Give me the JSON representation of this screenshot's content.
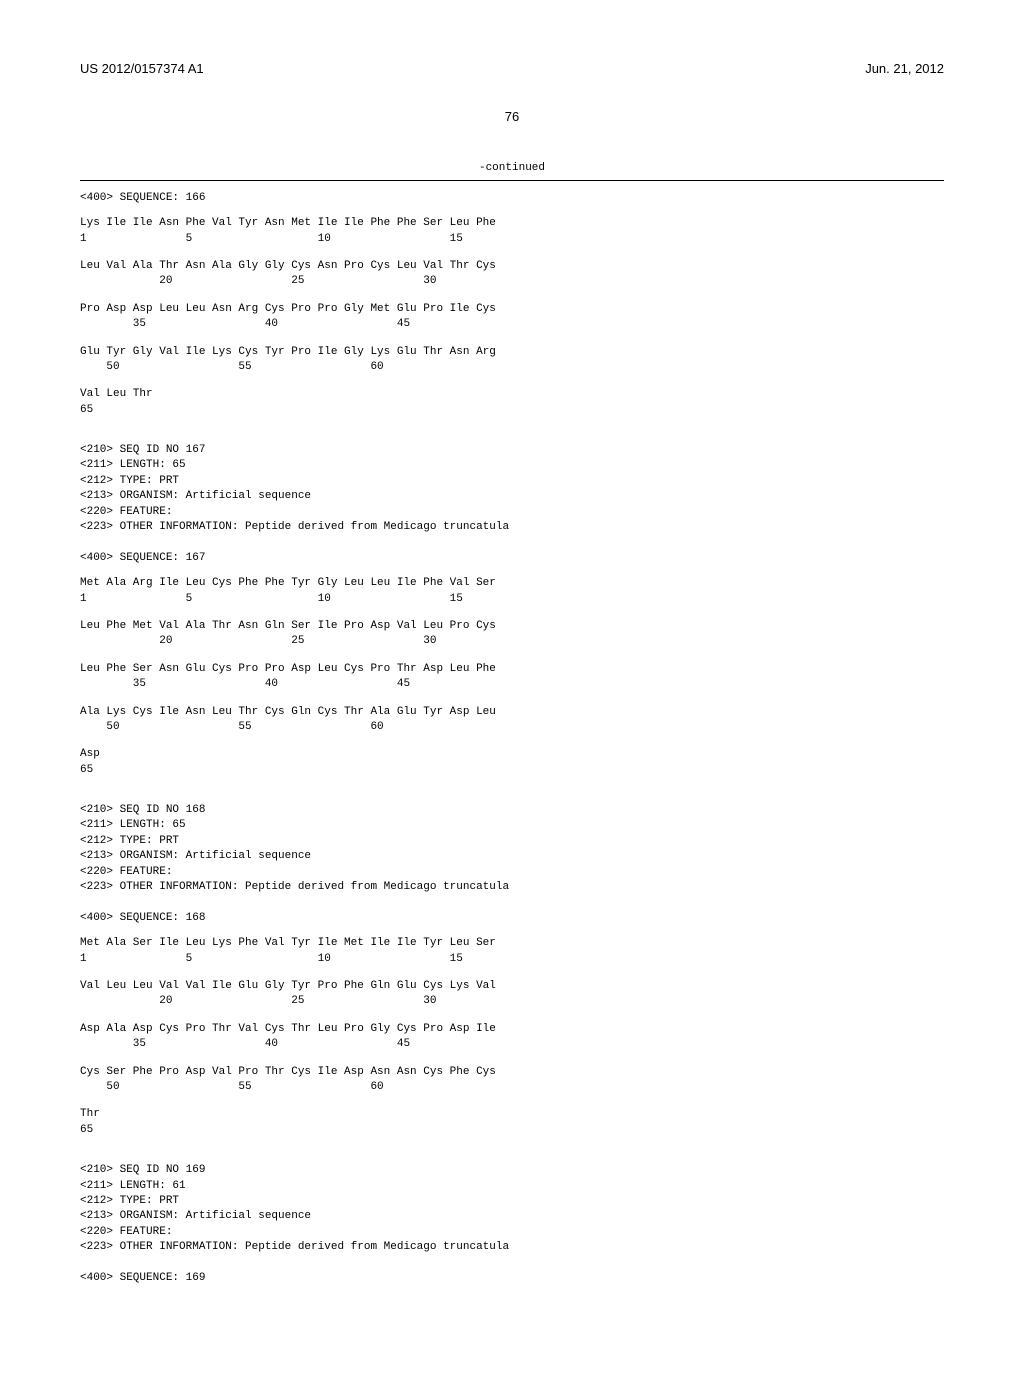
{
  "header": {
    "pub_number": "US 2012/0157374 A1",
    "pub_date": "Jun. 21, 2012"
  },
  "page_number": "76",
  "continued_label": "-continued",
  "sequences": [
    {
      "header": [
        "<400> SEQUENCE: 166"
      ],
      "rows": [
        {
          "seq": "Lys Ile Ile Asn Phe Val Tyr Asn Met Ile Ile Phe Phe Ser Leu Phe",
          "pos": "1               5                   10                  15"
        },
        {
          "seq": "Leu Val Ala Thr Asn Ala Gly Gly Cys Asn Pro Cys Leu Val Thr Cys",
          "pos": "            20                  25                  30"
        },
        {
          "seq": "Pro Asp Asp Leu Leu Asn Arg Cys Pro Pro Gly Met Glu Pro Ile Cys",
          "pos": "        35                  40                  45"
        },
        {
          "seq": "Glu Tyr Gly Val Ile Lys Cys Tyr Pro Ile Gly Lys Glu Thr Asn Arg",
          "pos": "    50                  55                  60"
        },
        {
          "seq": "Val Leu Thr",
          "pos": "65"
        }
      ]
    },
    {
      "header": [
        "<210> SEQ ID NO 167",
        "<211> LENGTH: 65",
        "<212> TYPE: PRT",
        "<213> ORGANISM: Artificial sequence",
        "<220> FEATURE:",
        "<223> OTHER INFORMATION: Peptide derived from Medicago truncatula",
        "",
        "<400> SEQUENCE: 167"
      ],
      "rows": [
        {
          "seq": "Met Ala Arg Ile Leu Cys Phe Phe Tyr Gly Leu Leu Ile Phe Val Ser",
          "pos": "1               5                   10                  15"
        },
        {
          "seq": "Leu Phe Met Val Ala Thr Asn Gln Ser Ile Pro Asp Val Leu Pro Cys",
          "pos": "            20                  25                  30"
        },
        {
          "seq": "Leu Phe Ser Asn Glu Cys Pro Pro Asp Leu Cys Pro Thr Asp Leu Phe",
          "pos": "        35                  40                  45"
        },
        {
          "seq": "Ala Lys Cys Ile Asn Leu Thr Cys Gln Cys Thr Ala Glu Tyr Asp Leu",
          "pos": "    50                  55                  60"
        },
        {
          "seq": "Asp",
          "pos": "65"
        }
      ]
    },
    {
      "header": [
        "<210> SEQ ID NO 168",
        "<211> LENGTH: 65",
        "<212> TYPE: PRT",
        "<213> ORGANISM: Artificial sequence",
        "<220> FEATURE:",
        "<223> OTHER INFORMATION: Peptide derived from Medicago truncatula",
        "",
        "<400> SEQUENCE: 168"
      ],
      "rows": [
        {
          "seq": "Met Ala Ser Ile Leu Lys Phe Val Tyr Ile Met Ile Ile Tyr Leu Ser",
          "pos": "1               5                   10                  15"
        },
        {
          "seq": "Val Leu Leu Val Val Ile Glu Gly Tyr Pro Phe Gln Glu Cys Lys Val",
          "pos": "            20                  25                  30"
        },
        {
          "seq": "Asp Ala Asp Cys Pro Thr Val Cys Thr Leu Pro Gly Cys Pro Asp Ile",
          "pos": "        35                  40                  45"
        },
        {
          "seq": "Cys Ser Phe Pro Asp Val Pro Thr Cys Ile Asp Asn Asn Cys Phe Cys",
          "pos": "    50                  55                  60"
        },
        {
          "seq": "Thr",
          "pos": "65"
        }
      ]
    },
    {
      "header": [
        "<210> SEQ ID NO 169",
        "<211> LENGTH: 61",
        "<212> TYPE: PRT",
        "<213> ORGANISM: Artificial sequence",
        "<220> FEATURE:",
        "<223> OTHER INFORMATION: Peptide derived from Medicago truncatula",
        "",
        "<400> SEQUENCE: 169"
      ],
      "rows": []
    }
  ]
}
